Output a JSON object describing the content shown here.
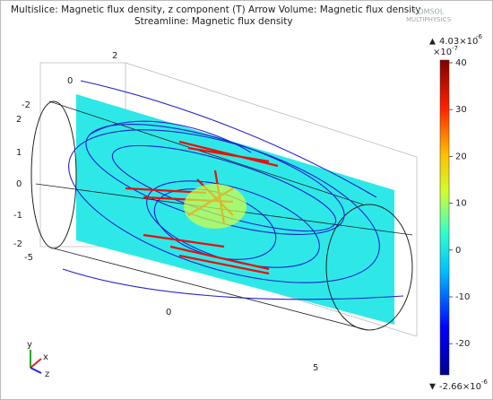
{
  "header": {
    "line1": "Multislice: Magnetic flux density, z component (T)  Arrow Volume: Magnetic flux density",
    "line2": "Streamline: Magnetic flux density"
  },
  "logo": {
    "line1": "COMSOL",
    "line2": "MULTIPHYSICS"
  },
  "colorbar": {
    "max_mark": "▲",
    "max_mantissa": "4.03×10",
    "max_exponent": "-6",
    "scale_mantissa": "×10",
    "scale_exponent": "-7",
    "ticks": [
      40,
      30,
      20,
      10,
      0,
      -10,
      -20
    ],
    "min_mark": "▼",
    "min_mantissa": "-2.66×10",
    "min_exponent": "-6"
  },
  "axes": {
    "depth_ticks": [
      "2",
      "0",
      "-2"
    ],
    "vertical_ticks": [
      "2",
      "1",
      "0",
      "-1",
      "-2"
    ],
    "length_ticks": [
      "-5",
      "0",
      "5"
    ],
    "triad": [
      "y",
      "x",
      "z"
    ]
  }
}
